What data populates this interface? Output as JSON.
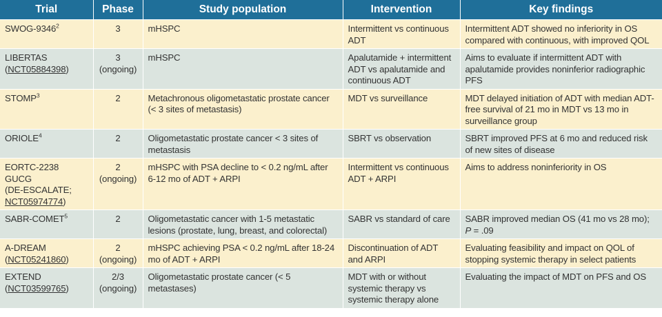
{
  "table": {
    "headers": [
      "Trial",
      "Phase",
      "Study population",
      "Intervention",
      "Key findings"
    ],
    "rows": [
      {
        "trial": "SWOG-9346",
        "ref": "2",
        "reg": "",
        "trial_extra": "",
        "phase": "3",
        "phase_note": "",
        "population": "mHSPC",
        "intervention": "Intermittent vs continuous ADT",
        "findings": "Intermittent ADT showed no inferiority in OS compared with continuous, with improved QOL"
      },
      {
        "trial": "LIBERTAS",
        "ref": "",
        "reg": "NCT05884398",
        "trial_extra": "",
        "phase": "3",
        "phase_note": "(ongoing)",
        "population": "mHSPC",
        "intervention": "Apalutamide + intermittent ADT vs apalutamide and continuous ADT",
        "findings": "Aims to evaluate if intermittent ADT with apalutamide provides noninferior radiographic PFS"
      },
      {
        "trial": "STOMP",
        "ref": "3",
        "reg": "",
        "trial_extra": "",
        "phase": "2",
        "phase_note": "",
        "population": "Metachronous oligometastatic prostate cancer (< 3 sites of metastasis)",
        "intervention": "MDT vs surveillance",
        "findings": "MDT delayed initiation of ADT with median ADT-free survival of 21 mo in MDT vs 13 mo in surveillance group"
      },
      {
        "trial": "ORIOLE",
        "ref": "4",
        "reg": "",
        "trial_extra": "",
        "phase": "2",
        "phase_note": "",
        "population": "Oligometastatic prostate cancer < 3 sites of metastasis",
        "intervention": "SBRT vs observation",
        "findings": "SBRT improved PFS at 6 mo and reduced risk of new sites of disease"
      },
      {
        "trial": "EORTC-2238 GUCG",
        "ref": "",
        "reg": "NCT05974774",
        "trial_extra": "(DE-ESCALATE;",
        "phase": "2",
        "phase_note": "(ongoing)",
        "population": "mHSPC with PSA decline to < 0.2 ng/mL after 6-12 mo of ADT + ARPI",
        "intervention": "Intermittent vs continuous ADT + ARPI",
        "findings": "Aims to address noninferiority in OS"
      },
      {
        "trial": "SABR-COMET",
        "ref": "5",
        "reg": "",
        "trial_extra": "",
        "phase": "2",
        "phase_note": "",
        "population": "Oligometastatic cancer with 1-5 metastatic lesions (prostate, lung, breast, and colorectal)",
        "intervention": "SABR vs standard of care",
        "findings": "SABR improved median OS (41 mo vs 28 mo);",
        "findings_p_label": "P",
        "findings_p_value": " = .09"
      },
      {
        "trial": "A-DREAM",
        "ref": "",
        "reg": "NCT05241860",
        "trial_extra": "",
        "phase": "2",
        "phase_note": "(ongoing)",
        "population": "mHSPC achieving PSA < 0.2 ng/mL after 18-24 mo of ADT + ARPI",
        "intervention": "Discontinuation of ADT and ARPI",
        "findings": "Evaluating feasibility and impact on QOL of stopping systemic therapy in select patients"
      },
      {
        "trial": "EXTEND",
        "ref": "",
        "reg": "NCT03599765",
        "trial_extra": "",
        "phase": "2/3",
        "phase_note": "(ongoing)",
        "population": "Oligometastatic prostate cancer (< 5 metastases)",
        "intervention": "MDT with or without systemic therapy vs systemic therapy alone",
        "findings": "Evaluating the impact of MDT on PFS and OS"
      }
    ]
  },
  "colors": {
    "header_bg": "#1f6f99",
    "row_odd_bg": "#fbf0cd",
    "row_even_bg": "#dbe4df"
  }
}
